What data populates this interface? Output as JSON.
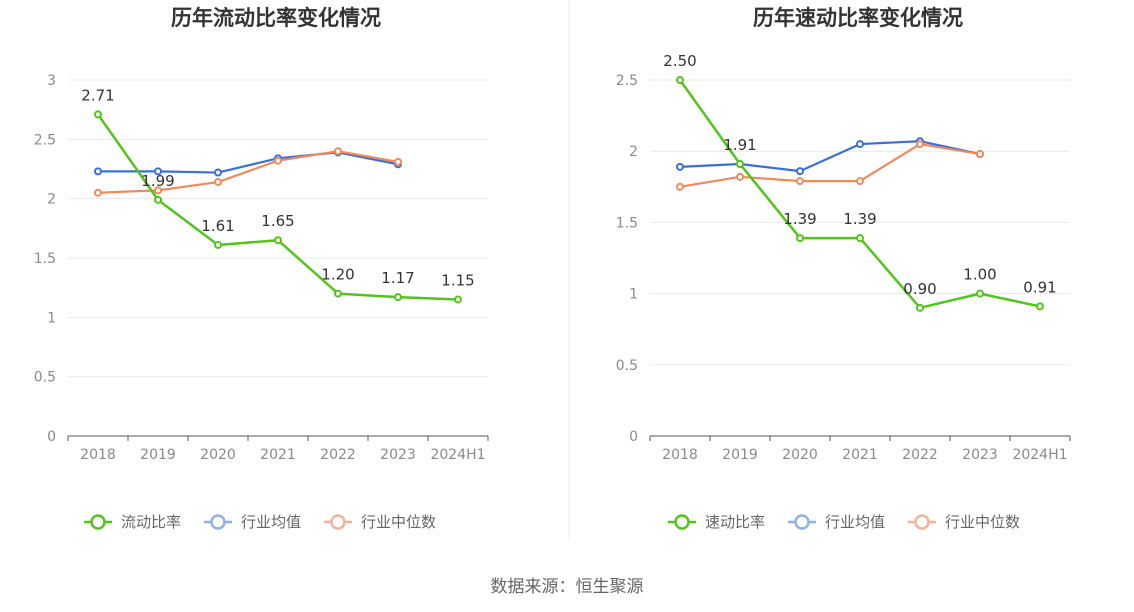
{
  "footer": {
    "source": "数据来源：恒生聚源"
  },
  "colors": {
    "primary": "#52c41a",
    "average": "#3b6fd6",
    "median": "#f08a5d",
    "average_legend": "#8fb0ec",
    "median_legend": "#f5b29a",
    "grid": "#e6e9f0",
    "axis": "#555555",
    "divider": "#eeeeee"
  },
  "chart_data": [
    {
      "type": "line",
      "title": "历年流动比率变化情况",
      "categories": [
        "2018",
        "2019",
        "2020",
        "2021",
        "2022",
        "2023",
        "2024H1"
      ],
      "ylim": [
        0,
        3
      ],
      "yticks": [
        "0",
        "0.5",
        "1",
        "1.5",
        "2",
        "2.5",
        "3"
      ],
      "grid": true,
      "legend_position": "bottom",
      "series": [
        {
          "name": "流动比率",
          "values": [
            2.71,
            1.99,
            1.61,
            1.65,
            1.2,
            1.17,
            1.15
          ],
          "labels": [
            "2.71",
            "1.99",
            "1.61",
            "1.65",
            "1.20",
            "1.17",
            "1.15"
          ]
        },
        {
          "name": "行业均值",
          "values": [
            2.23,
            2.23,
            2.22,
            2.34,
            2.39,
            2.29,
            null
          ]
        },
        {
          "name": "行业中位数",
          "values": [
            2.05,
            2.07,
            2.14,
            2.32,
            2.4,
            2.31,
            null
          ]
        }
      ]
    },
    {
      "type": "line",
      "title": "历年速动比率变化情况",
      "categories": [
        "2018",
        "2019",
        "2020",
        "2021",
        "2022",
        "2023",
        "2024H1"
      ],
      "ylim": [
        0,
        2.5
      ],
      "yticks": [
        "0",
        "0.5",
        "1",
        "1.5",
        "2",
        "2.5"
      ],
      "grid": true,
      "legend_position": "bottom",
      "series": [
        {
          "name": "速动比率",
          "values": [
            2.5,
            1.91,
            1.39,
            1.39,
            0.9,
            1.0,
            0.91
          ],
          "labels": [
            "2.50",
            "1.91",
            "1.39",
            "1.39",
            "0.90",
            "1.00",
            "0.91"
          ]
        },
        {
          "name": "行业均值",
          "values": [
            1.89,
            1.91,
            1.86,
            2.05,
            2.07,
            1.98,
            null
          ]
        },
        {
          "name": "行业中位数",
          "values": [
            1.75,
            1.82,
            1.79,
            1.79,
            2.05,
            1.98,
            null
          ]
        }
      ]
    }
  ]
}
